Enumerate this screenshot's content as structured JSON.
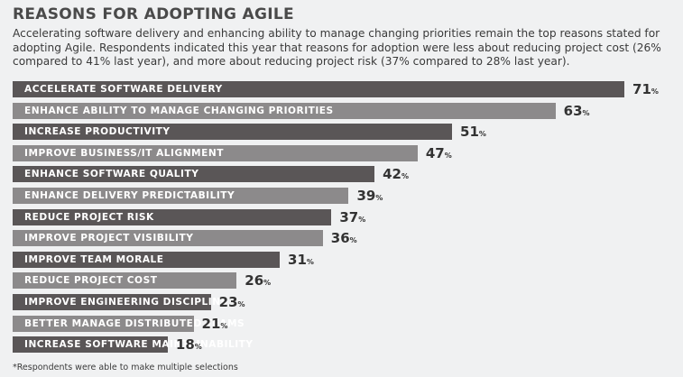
{
  "title": "REASONS FOR ADOPTING AGILE",
  "description": "Accelerating software delivery and enhancing ability to manage changing priorities remain the top reasons stated for adopting Agile. Respondents indicated this year that reasons for adoption were less about reducing project cost (26% compared to 41% last year), and more about reducing project risk (37% compared to 28% last year).",
  "footnote": "*Respondents were able to make multiple selections",
  "colors": {
    "dark_bar": "#5a5657",
    "light_bar": "#8c8a8b",
    "background": "#f0f1f2"
  },
  "chart_data": {
    "type": "bar",
    "orientation": "horizontal",
    "value_suffix": "%",
    "categories": [
      "ACCELERATE SOFTWARE DELIVERY",
      "ENHANCE ABILITY TO MANAGE CHANGING PRIORITIES",
      "INCREASE PRODUCTIVITY",
      "IMPROVE BUSINESS/IT ALIGNMENT",
      "ENHANCE SOFTWARE QUALITY",
      "ENHANCE DELIVERY PREDICTABILITY",
      "REDUCE PROJECT RISK",
      "IMPROVE PROJECT VISIBILITY",
      "IMPROVE TEAM MORALE",
      "REDUCE PROJECT COST",
      "IMPROVE ENGINEERING DISCIPLINE",
      "BETTER MANAGE DISTRIBUTED TEAMS",
      "INCREASE SOFTWARE MAINTAINABILITY"
    ],
    "values": [
      71,
      63,
      51,
      47,
      42,
      39,
      37,
      36,
      31,
      26,
      23,
      21,
      18
    ],
    "title": "REASONS FOR ADOPTING AGILE",
    "xlabel": "",
    "ylabel": "",
    "grid": false,
    "legend": "none"
  }
}
